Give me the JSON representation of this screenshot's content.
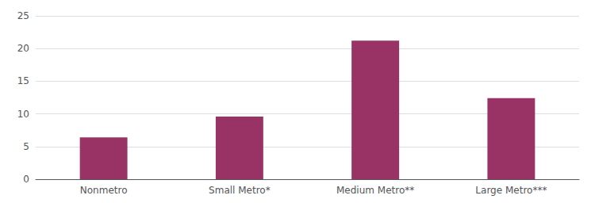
{
  "chart_data": {
    "type": "bar",
    "categories": [
      "Nonmetro",
      "Small Metro*",
      "Medium Metro**",
      "Large Metro***"
    ],
    "values": [
      6.4,
      9.6,
      21.2,
      12.4
    ],
    "color": "#993366",
    "ylim": [
      0,
      25
    ],
    "yticks": [
      0,
      5,
      10,
      15,
      20,
      25
    ],
    "grid": true
  }
}
